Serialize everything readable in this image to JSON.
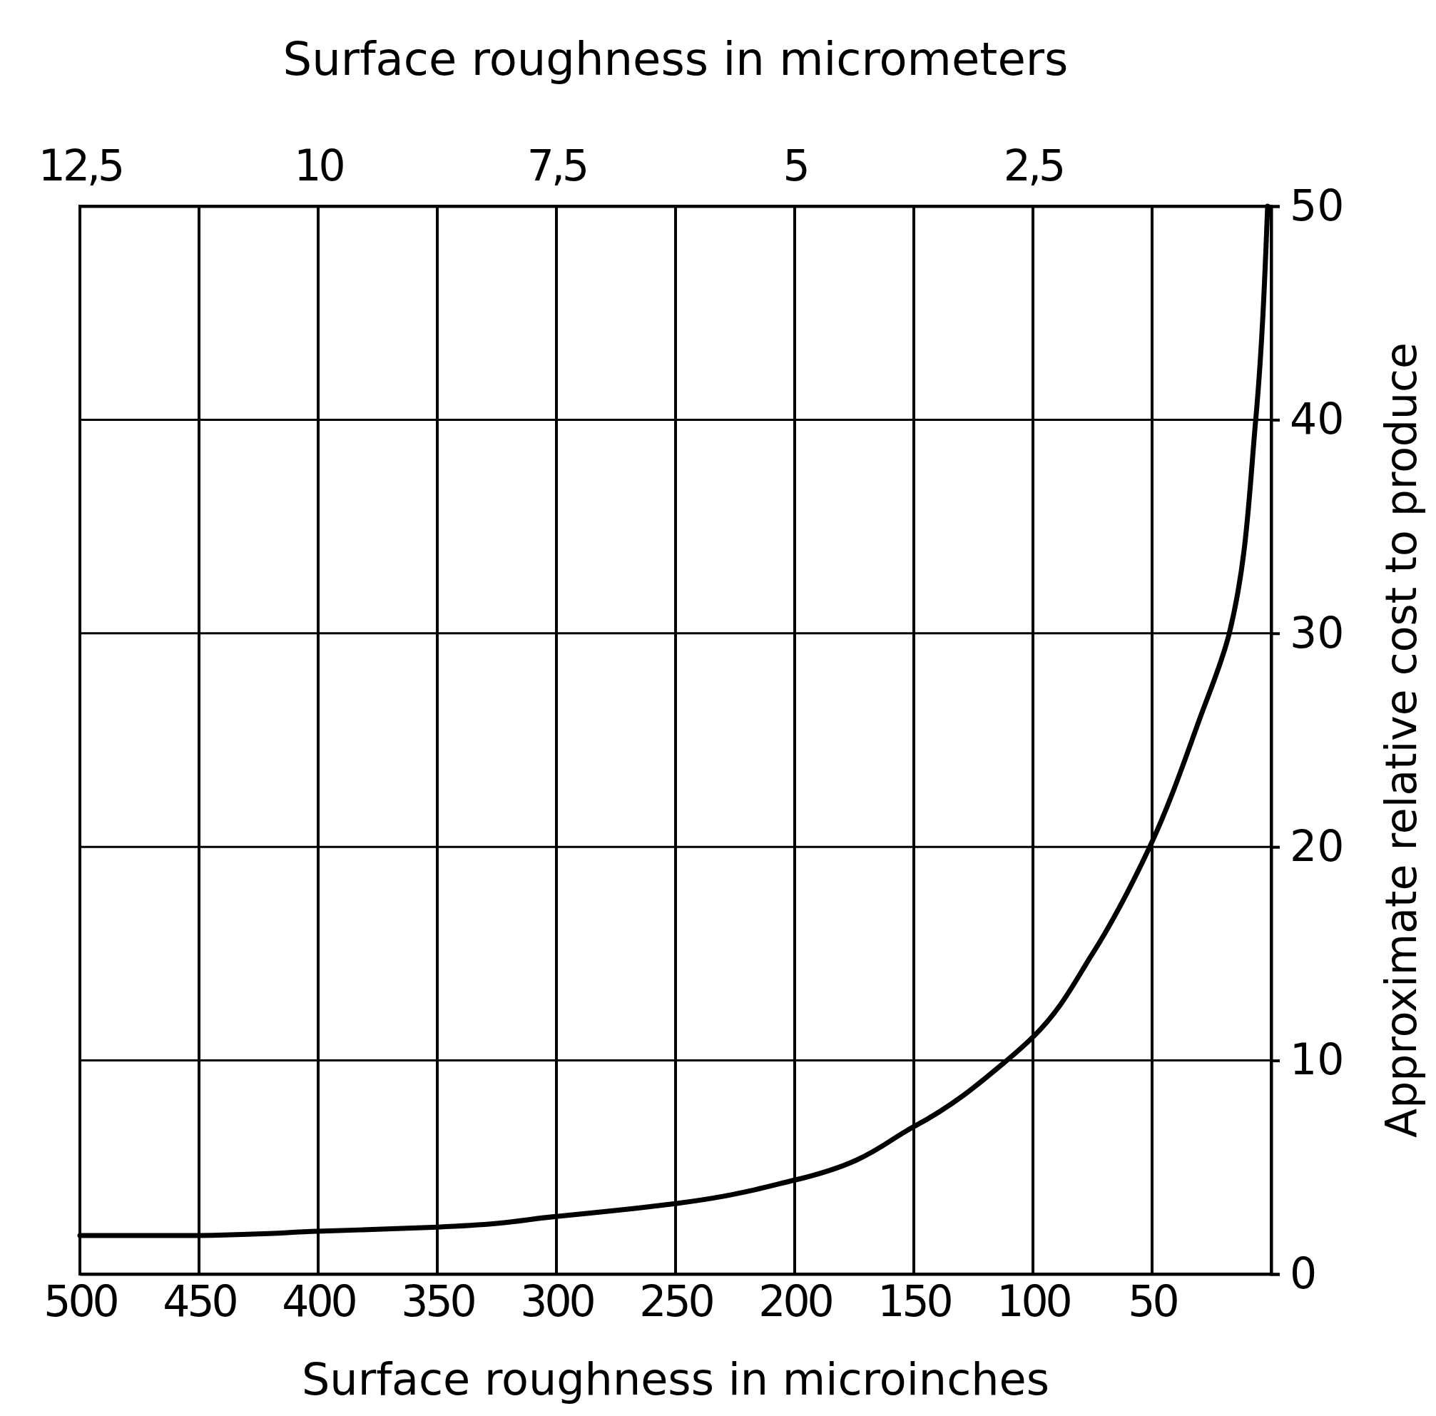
{
  "chart_data": {
    "type": "line",
    "xlabel": "Surface  roughness in microinches",
    "x2label": "Surface  roughness in micrometers",
    "ylabel": "Approximate  relative  cost  to produce",
    "x": [
      500,
      450,
      400,
      350,
      300,
      250,
      200,
      150,
      111,
      100,
      75,
      51,
      30,
      17.6,
      6.5,
      1.5
    ],
    "series": [
      {
        "color": "#000000",
        "values": [
          1.8,
          1.8,
          2.0,
          2.2,
          2.7,
          3.3,
          4.4,
          6.9,
          10,
          11.1,
          15,
          20,
          26,
          30,
          40,
          50
        ]
      }
    ],
    "xlim": [
      500,
      0
    ],
    "xticks": [
      500,
      450,
      400,
      350,
      300,
      250,
      200,
      150,
      100,
      50
    ],
    "x2lim": [
      12.5,
      0
    ],
    "x2ticks": [
      {
        "value": 12.5,
        "label": "12,5"
      },
      10,
      {
        "value": 7.5,
        "label": "7,5"
      },
      5,
      {
        "value": 2.5,
        "label": "2,5"
      }
    ],
    "ylim": [
      0,
      50
    ],
    "yticks": [
      0,
      10,
      20,
      30,
      40,
      50
    ],
    "grid": true,
    "marker": "none",
    "line_style": "solid"
  }
}
